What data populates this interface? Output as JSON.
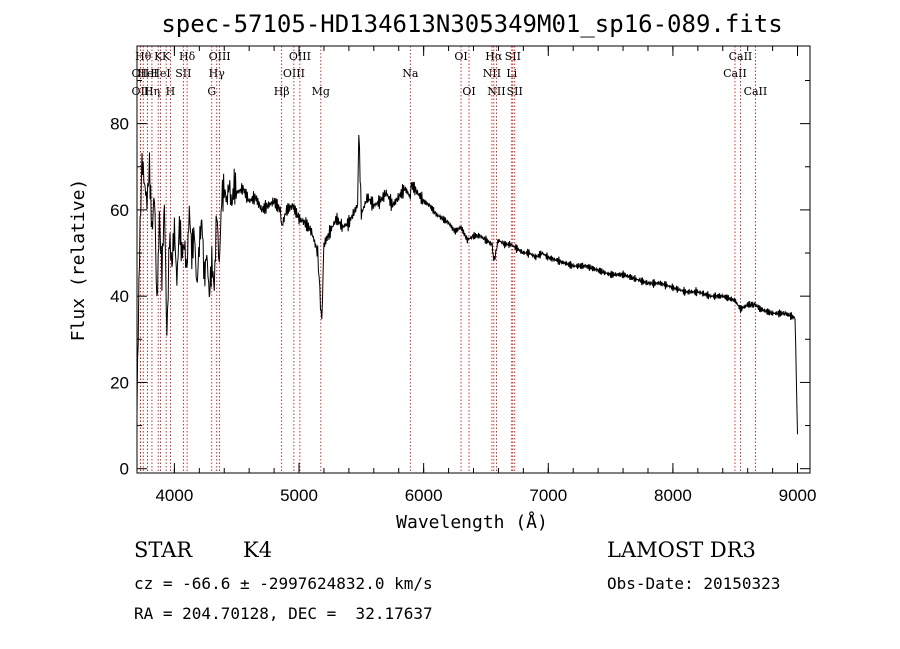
{
  "chart_data": {
    "type": "line",
    "title": "spec-57105-HD134613N305349M01_sp16-089.fits",
    "xlabel": "Wavelength (Å)",
    "ylabel": "Flux (relative)",
    "xlim": [
      3700,
      9100
    ],
    "ylim": [
      -1,
      98
    ],
    "xticks": [
      4000,
      5000,
      6000,
      7000,
      8000,
      9000
    ],
    "yticks": [
      0,
      20,
      40,
      60,
      80
    ],
    "grid": false,
    "series": [
      {
        "x": [
          3700,
          3720,
          3740,
          3760,
          3780,
          3800,
          3820,
          3840,
          3860,
          3880,
          3900,
          3920,
          3940,
          3960,
          3980,
          4000,
          4020,
          4040,
          4060,
          4080,
          4100,
          4120,
          4140,
          4160,
          4180,
          4200,
          4220,
          4240,
          4260,
          4280,
          4300,
          4320,
          4340,
          4360,
          4380,
          4400,
          4420,
          4440,
          4460,
          4480,
          4500,
          4550,
          4600,
          4650,
          4700,
          4750,
          4800,
          4850,
          4861,
          4900,
          4950,
          5000,
          5050,
          5100,
          5150,
          5172,
          5183,
          5200,
          5250,
          5300,
          5350,
          5400,
          5450,
          5470,
          5480,
          5500,
          5550,
          5600,
          5650,
          5700,
          5750,
          5800,
          5850,
          5893,
          5900,
          5950,
          6000,
          6050,
          6100,
          6150,
          6200,
          6250,
          6300,
          6350,
          6400,
          6450,
          6500,
          6550,
          6563,
          6600,
          6650,
          6700,
          6750,
          6800,
          6850,
          6900,
          6950,
          7000,
          7100,
          7200,
          7300,
          7400,
          7500,
          7600,
          7700,
          7800,
          7900,
          8000,
          8100,
          8200,
          8300,
          8400,
          8498,
          8542,
          8600,
          8662,
          8700,
          8800,
          8900,
          8980,
          9000
        ],
        "values": [
          14,
          50,
          72,
          66,
          62,
          70,
          55,
          64,
          38,
          58,
          45,
          62,
          30,
          54,
          47,
          56,
          43,
          57,
          50,
          52,
          46,
          60,
          50,
          55,
          42,
          52,
          58,
          44,
          50,
          40,
          48,
          42,
          60,
          47,
          63,
          65,
          62,
          66,
          61,
          66,
          64,
          65,
          62,
          63,
          60,
          61,
          62,
          60,
          56,
          60,
          61,
          58,
          57,
          55,
          50,
          38,
          34,
          52,
          55,
          58,
          56,
          57,
          60,
          61,
          78,
          59,
          63,
          61,
          62,
          64,
          61,
          63,
          65,
          63,
          66,
          64,
          62,
          61,
          59,
          58,
          57,
          55,
          56,
          53,
          54,
          54,
          53,
          52,
          48,
          53,
          52,
          52,
          51,
          50,
          50,
          49,
          50,
          49,
          48,
          47,
          47,
          46,
          45,
          45,
          44,
          43,
          43,
          42,
          41,
          41,
          40,
          40,
          39,
          37,
          38,
          38,
          37,
          36,
          36,
          35,
          8
        ]
      }
    ],
    "line_marks": [
      {
        "w": 3727,
        "label": "OII",
        "row": 2
      },
      {
        "w": 3727,
        "label": "OII",
        "row": 3
      },
      {
        "w": 3750,
        "label": "Hθ",
        "row": 1
      },
      {
        "w": 3785,
        "label": "HeI",
        "row": 2
      },
      {
        "w": 3820,
        "label": "Hη",
        "row": 3
      },
      {
        "w": 3870,
        "label": "K",
        "row": 1
      },
      {
        "w": 3889,
        "label": "HeI",
        "row": 2
      },
      {
        "w": 3934,
        "label": "K",
        "row": 1
      },
      {
        "w": 3968,
        "label": "H",
        "row": 3
      },
      {
        "w": 4072,
        "label": "SII",
        "row": 2
      },
      {
        "w": 4102,
        "label": "Hδ",
        "row": 1
      },
      {
        "w": 4300,
        "label": "G",
        "row": 3
      },
      {
        "w": 4340,
        "label": "Hγ",
        "row": 2
      },
      {
        "w": 4363,
        "label": "OIII",
        "row": 1
      },
      {
        "w": 4861,
        "label": "Hβ",
        "row": 3
      },
      {
        "w": 4959,
        "label": "OIII",
        "row": 2
      },
      {
        "w": 5007,
        "label": "OIII",
        "row": 1
      },
      {
        "w": 5175,
        "label": "Mg",
        "row": 3
      },
      {
        "w": 5893,
        "label": "Na",
        "row": 2
      },
      {
        "w": 6300,
        "label": "OI",
        "row": 1
      },
      {
        "w": 6364,
        "label": "OI",
        "row": 3
      },
      {
        "w": 6548,
        "label": "NII",
        "row": 2
      },
      {
        "w": 6563,
        "label": "Hα",
        "row": 1
      },
      {
        "w": 6584,
        "label": "NII",
        "row": 3
      },
      {
        "w": 6707,
        "label": "Li",
        "row": 2
      },
      {
        "w": 6716,
        "label": "SII",
        "row": 1
      },
      {
        "w": 6731,
        "label": "SII",
        "row": 3
      },
      {
        "w": 8498,
        "label": "CaII",
        "row": 2
      },
      {
        "w": 8542,
        "label": "CaII",
        "row": 1
      },
      {
        "w": 8662,
        "label": "CaII",
        "row": 3
      }
    ]
  },
  "info": {
    "class_label": "STAR",
    "subclass": "K4",
    "survey": "LAMOST DR3",
    "cz_line": "cz = -66.6 ± -2997624832.0 km/s",
    "obs_date": "Obs-Date: 20150323",
    "radec_line": "RA = 204.70128, DEC =  32.17637"
  }
}
